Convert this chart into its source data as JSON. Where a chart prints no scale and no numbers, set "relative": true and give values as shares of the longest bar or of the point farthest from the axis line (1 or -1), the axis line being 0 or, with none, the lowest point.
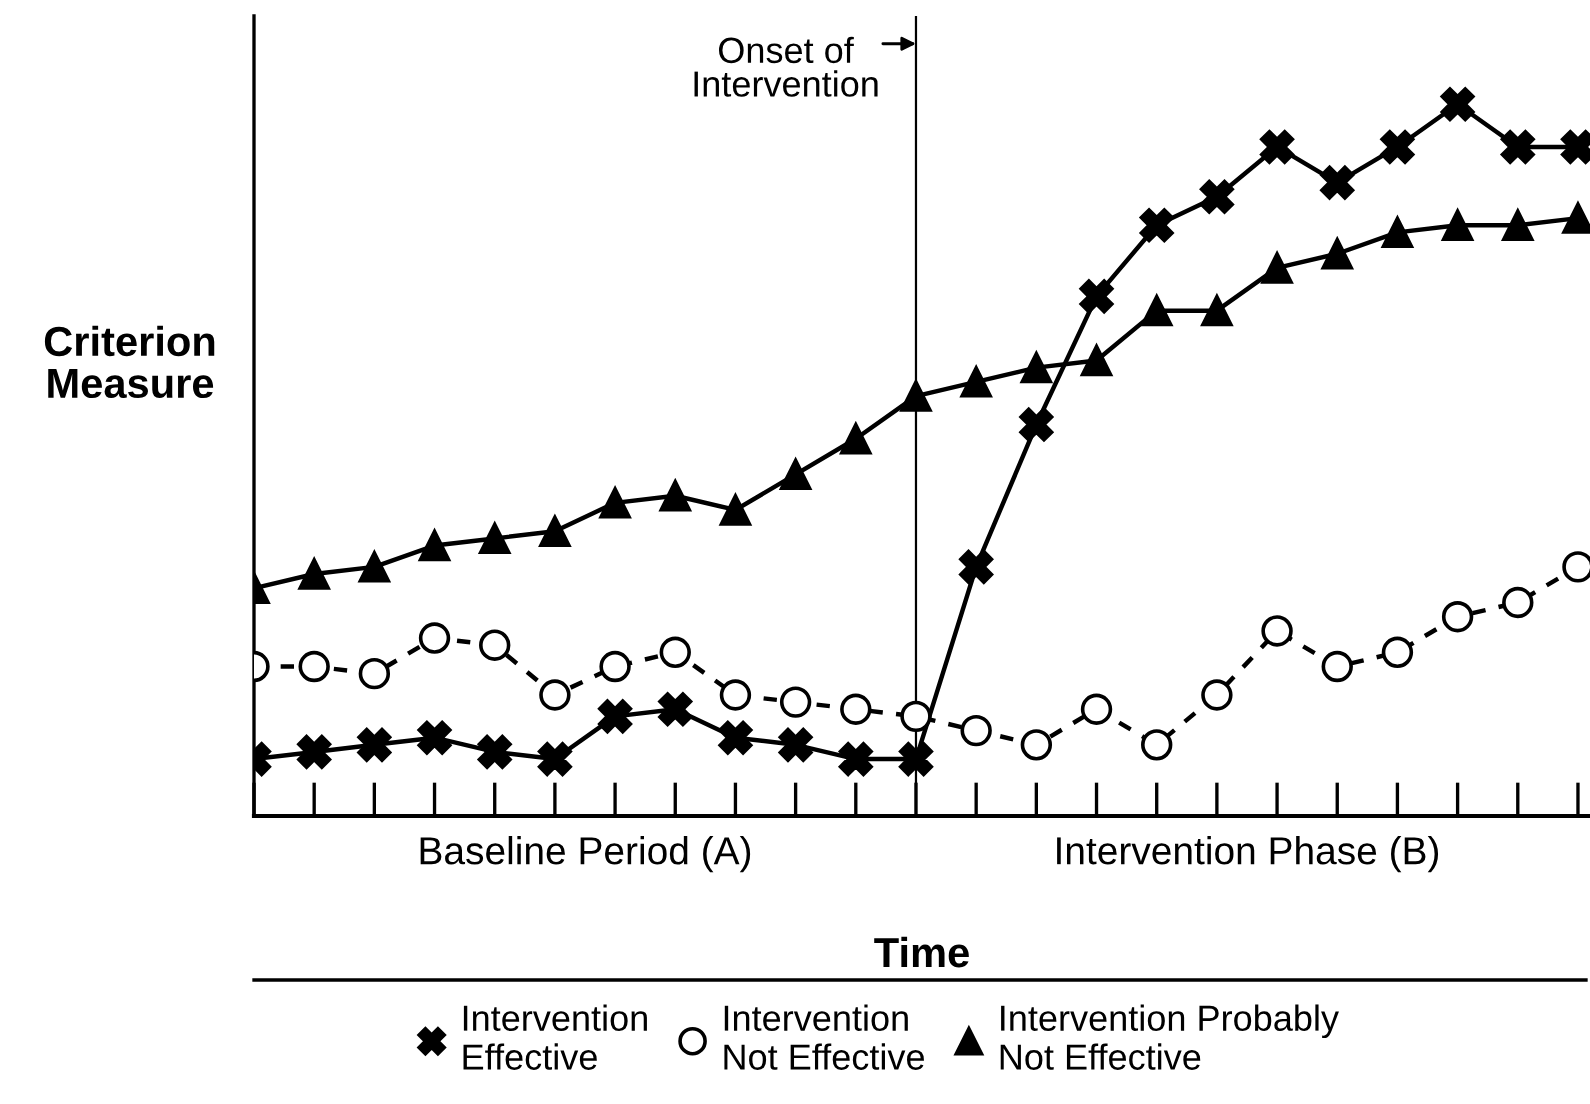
{
  "chart_data": {
    "type": "line",
    "relative": true,
    "xlabel": "Time",
    "ylabel": "Criterion Measure",
    "categories": [
      null,
      null,
      null,
      null,
      null,
      null,
      null,
      null,
      null,
      null,
      null,
      null,
      null,
      null,
      null,
      null,
      null,
      null,
      null,
      null,
      null,
      null,
      null
    ],
    "series": [
      {
        "name": "Intervention\nEffective",
        "color": "#000000",
        "marker": "cross",
        "line_style": "solid",
        "values": [
          0.08,
          0.09,
          0.1,
          0.11,
          0.09,
          0.08,
          0.14,
          0.15,
          0.11,
          0.1,
          0.08,
          0.08,
          0.35,
          0.55,
          0.73,
          0.83,
          0.87,
          0.94,
          0.89,
          0.94,
          1.0,
          0.94,
          0.94
        ]
      },
      {
        "name": "Intervention\nNot Effective",
        "color": "#000000",
        "marker": "circle",
        "line_style": "dashed",
        "values": [
          0.21,
          0.21,
          0.2,
          0.25,
          0.24,
          0.17,
          0.21,
          0.23,
          0.17,
          0.16,
          0.15,
          0.14,
          0.12,
          0.1,
          0.15,
          0.1,
          0.17,
          0.26,
          0.21,
          0.23,
          0.28,
          0.3,
          0.35
        ]
      },
      {
        "name": "Intervention Probably\nNot Effective",
        "color": "#000000",
        "marker": "triangle",
        "line_style": "solid",
        "values": [
          0.32,
          0.34,
          0.35,
          0.38,
          0.39,
          0.4,
          0.44,
          0.45,
          0.43,
          0.48,
          0.53,
          0.59,
          0.61,
          0.63,
          0.64,
          0.71,
          0.71,
          0.77,
          0.79,
          0.82,
          0.83,
          0.83,
          0.84
        ]
      }
    ],
    "annotations": [
      "Onset of\nIntervention",
      "Baseline Period (A)",
      "Intervention Phase (B)"
    ],
    "legend": "bottom",
    "grid": false
  }
}
